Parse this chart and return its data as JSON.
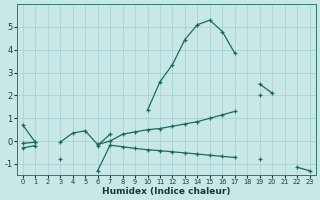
{
  "xlabel": "Humidex (Indice chaleur)",
  "bg_color": "#c8e8e8",
  "grid_color": "#a8cccc",
  "line_color": "#1a6b5a",
  "x_values": [
    0,
    1,
    2,
    3,
    4,
    5,
    6,
    7,
    8,
    9,
    10,
    11,
    12,
    13,
    14,
    15,
    16,
    17,
    18,
    19,
    20,
    21,
    22,
    23
  ],
  "line1": [
    0.7,
    -0.05,
    null,
    null,
    null,
    null,
    -0.2,
    0.3,
    null,
    null,
    1.35,
    2.6,
    3.35,
    4.45,
    5.1,
    5.3,
    4.8,
    3.85,
    null,
    2.5,
    2.1,
    null,
    null,
    null
  ],
  "line2": [
    -0.1,
    -0.05,
    null,
    -0.05,
    0.35,
    0.45,
    -0.15,
    0.0,
    0.3,
    0.4,
    0.5,
    0.55,
    0.65,
    0.75,
    0.85,
    1.0,
    1.15,
    1.3,
    null,
    2.0,
    null,
    null,
    null,
    null
  ],
  "line3": [
    -0.3,
    -0.2,
    null,
    -0.8,
    null,
    null,
    -1.3,
    -0.18,
    -0.25,
    -0.32,
    -0.38,
    -0.42,
    -0.47,
    -0.52,
    -0.57,
    -0.62,
    -0.67,
    -0.72,
    null,
    -0.8,
    null,
    null,
    -1.15,
    -1.3
  ],
  "ylim": [
    -1.5,
    6.0
  ],
  "xlim": [
    -0.5,
    23.5
  ],
  "yticks": [
    -1,
    0,
    1,
    2,
    3,
    4,
    5
  ],
  "xticks": [
    0,
    1,
    2,
    3,
    4,
    5,
    6,
    7,
    8,
    9,
    10,
    11,
    12,
    13,
    14,
    15,
    16,
    17,
    18,
    19,
    20,
    21,
    22,
    23
  ]
}
